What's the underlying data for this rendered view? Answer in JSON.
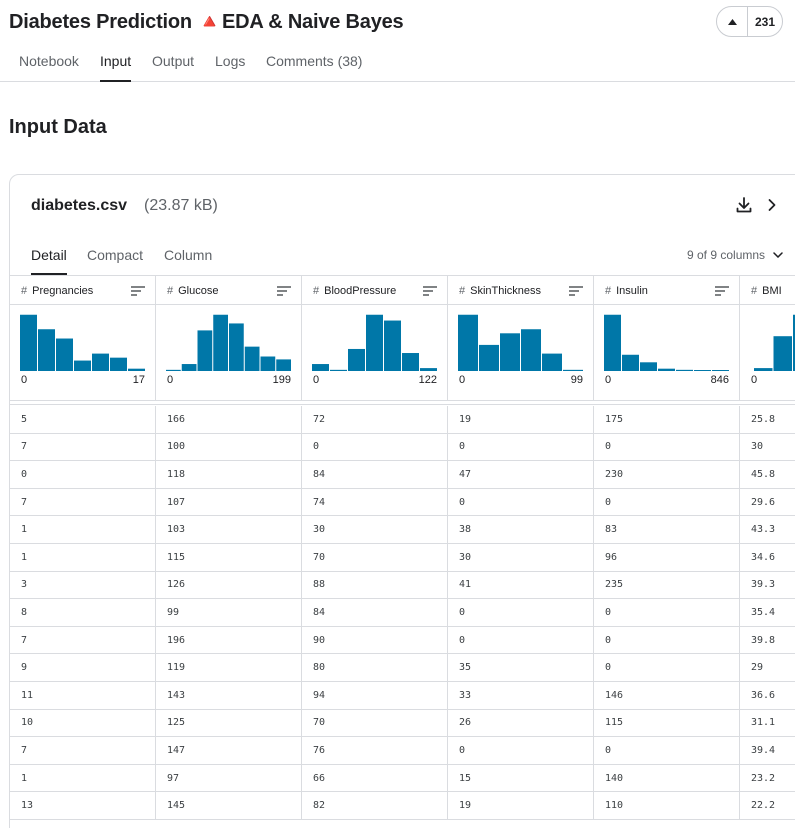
{
  "header": {
    "title": "Diabetes Prediction 🔺EDA & Naive Bayes",
    "vote_count": "231"
  },
  "tabs": [
    {
      "label": "Notebook"
    },
    {
      "label": "Input"
    },
    {
      "label": "Output"
    },
    {
      "label": "Logs"
    },
    {
      "label": "Comments (38)"
    }
  ],
  "section_title": "Input Data",
  "file": {
    "name": "diabetes.csv",
    "size": "(23.87 kB)"
  },
  "view_tabs": [
    {
      "label": "Detail"
    },
    {
      "label": "Compact"
    },
    {
      "label": "Column"
    }
  ],
  "column_count": "9 of 9 columns",
  "columns": [
    {
      "name": "Pregnancies",
      "min": "0",
      "max": "17",
      "hist": [
        0.97,
        0.72,
        0.56,
        0.18,
        0.3,
        0.23,
        0.04
      ]
    },
    {
      "name": "Glucose",
      "min": "0",
      "max": "199",
      "hist": [
        0.02,
        0.12,
        0.7,
        0.97,
        0.82,
        0.42,
        0.25,
        0.2
      ]
    },
    {
      "name": "BloodPressure",
      "min": "0",
      "max": "122",
      "hist": [
        0.12,
        0.02,
        0.38,
        0.97,
        0.87,
        0.31,
        0.05
      ]
    },
    {
      "name": "SkinThickness",
      "min": "0",
      "max": "99",
      "hist": [
        0.97,
        0.45,
        0.65,
        0.72,
        0.3,
        0.02
      ]
    },
    {
      "name": "Insulin",
      "min": "0",
      "max": "846",
      "hist": [
        0.97,
        0.28,
        0.15,
        0.04,
        0.02,
        0.01,
        0.01
      ]
    },
    {
      "name": "BMI",
      "min": "0",
      "max": "",
      "hist": [
        0.05,
        0.6,
        0.97
      ]
    }
  ],
  "rows": [
    [
      "5",
      "166",
      "72",
      "19",
      "175",
      "25.8"
    ],
    [
      "7",
      "100",
      "0",
      "0",
      "0",
      "30"
    ],
    [
      "0",
      "118",
      "84",
      "47",
      "230",
      "45.8"
    ],
    [
      "7",
      "107",
      "74",
      "0",
      "0",
      "29.6"
    ],
    [
      "1",
      "103",
      "30",
      "38",
      "83",
      "43.3"
    ],
    [
      "1",
      "115",
      "70",
      "30",
      "96",
      "34.6"
    ],
    [
      "3",
      "126",
      "88",
      "41",
      "235",
      "39.3"
    ],
    [
      "8",
      "99",
      "84",
      "0",
      "0",
      "35.4"
    ],
    [
      "7",
      "196",
      "90",
      "0",
      "0",
      "39.8"
    ],
    [
      "9",
      "119",
      "80",
      "35",
      "0",
      "29"
    ],
    [
      "11",
      "143",
      "94",
      "33",
      "146",
      "36.6"
    ],
    [
      "10",
      "125",
      "70",
      "26",
      "115",
      "31.1"
    ],
    [
      "7",
      "147",
      "76",
      "0",
      "0",
      "39.4"
    ],
    [
      "1",
      "97",
      "66",
      "15",
      "140",
      "23.2"
    ],
    [
      "13",
      "145",
      "82",
      "19",
      "110",
      "22.2"
    ]
  ],
  "colors": {
    "accent": "#0077a8",
    "border": "#dadce0",
    "text": "#202124",
    "muted": "#5f6368"
  },
  "icons": {
    "upvote": "triangle-up-icon",
    "download": "download-icon",
    "open": "chevron-right-icon",
    "column_menu": "chevron-down-icon",
    "sort": "sort-icon"
  }
}
